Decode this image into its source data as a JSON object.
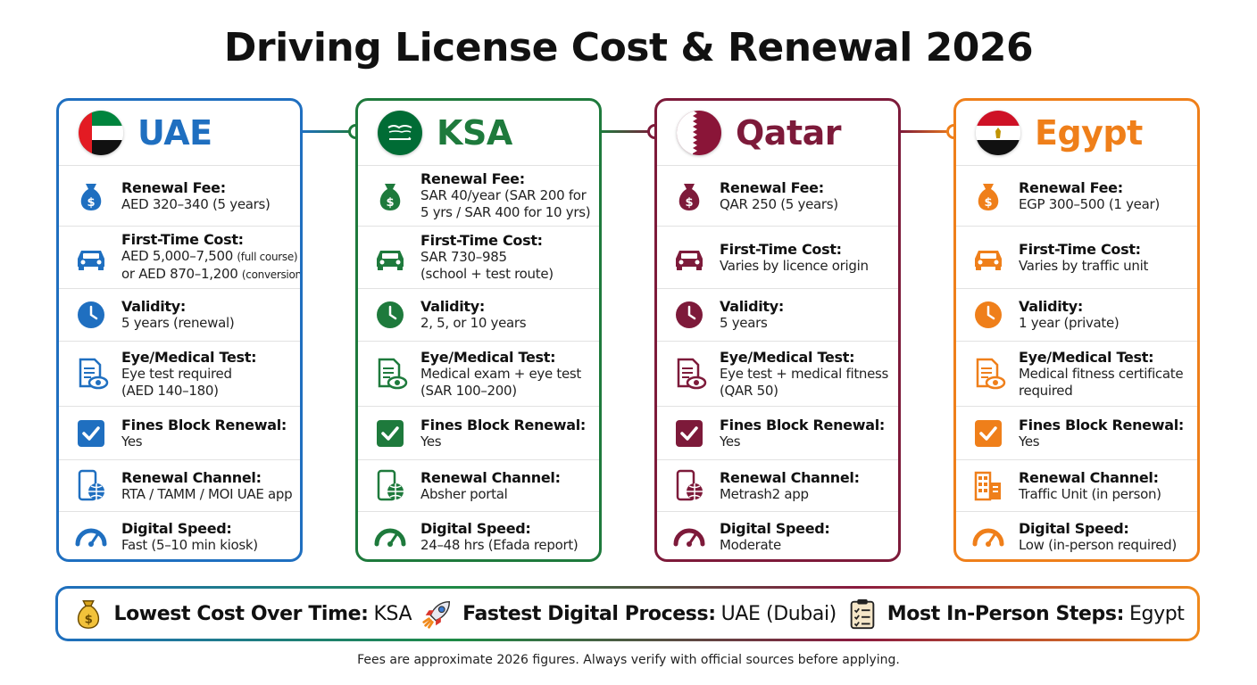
{
  "title": "Driving License Cost & Renewal 2026",
  "colors": {
    "uae": "#1f6fc0",
    "ksa": "#1e7a3c",
    "qatar": "#7d1a3a",
    "egypt": "#ef7f1a"
  },
  "countries": [
    {
      "name": "UAE",
      "flag": "uae-flag",
      "rows": [
        {
          "label": "Renewal Fee:",
          "value": "AED 320–340 (5 years)",
          "icon": "money-bag-icon"
        },
        {
          "label": "First-Time Cost:",
          "value": "AED 5,000–7,500",
          "value_small": "(full course)",
          "value2": "or AED 870–1,200",
          "value2_small": "(conversion)",
          "icon": "car-icon"
        },
        {
          "label": "Validity:",
          "value": "5 years (renewal)",
          "icon": "clock-icon"
        },
        {
          "label": "Eye/Medical Test:",
          "value": "Eye test required",
          "value2": "(AED 140–180)",
          "icon": "eye-document-icon"
        },
        {
          "label": "Fines Block Renewal:",
          "value": "Yes",
          "icon": "checkbox-icon"
        },
        {
          "label": "Renewal Channel:",
          "value": "RTA / TAMM / MOI UAE app",
          "icon": "phone-globe-icon"
        },
        {
          "label": "Digital Speed:",
          "value": "Fast (5–10 min kiosk)",
          "icon": "speedometer-icon"
        }
      ]
    },
    {
      "name": "KSA",
      "flag": "ksa-flag",
      "rows": [
        {
          "label": "Renewal Fee:",
          "value": "SAR 40/year (SAR 200 for",
          "value2": "5 yrs / SAR 400 for 10 yrs)",
          "icon": "money-bag-icon"
        },
        {
          "label": "First-Time Cost:",
          "value": "SAR 730–985",
          "value2": "(school + test route)",
          "icon": "car-icon"
        },
        {
          "label": "Validity:",
          "value": "2, 5, or 10 years",
          "icon": "clock-icon"
        },
        {
          "label": "Eye/Medical Test:",
          "value": "Medical exam + eye test",
          "value2": "(SAR 100–200)",
          "icon": "eye-document-icon"
        },
        {
          "label": "Fines Block Renewal:",
          "value": "Yes",
          "icon": "checkbox-icon"
        },
        {
          "label": "Renewal Channel:",
          "value": "Absher portal",
          "icon": "phone-globe-icon"
        },
        {
          "label": "Digital Speed:",
          "value": "24–48 hrs (Efada report)",
          "icon": "speedometer-icon"
        }
      ]
    },
    {
      "name": "Qatar",
      "flag": "qatar-flag",
      "rows": [
        {
          "label": "Renewal Fee:",
          "value": "QAR 250 (5 years)",
          "icon": "money-bag-icon"
        },
        {
          "label": "First-Time Cost:",
          "value": "Varies by licence origin",
          "icon": "car-icon"
        },
        {
          "label": "Validity:",
          "value": "5 years",
          "icon": "clock-icon"
        },
        {
          "label": "Eye/Medical Test:",
          "value": "Eye test + medical fitness",
          "value2": "(QAR 50)",
          "icon": "eye-document-icon"
        },
        {
          "label": "Fines Block Renewal:",
          "value": "Yes",
          "icon": "checkbox-icon"
        },
        {
          "label": "Renewal Channel:",
          "value": "Metrash2 app",
          "icon": "phone-globe-icon"
        },
        {
          "label": "Digital Speed:",
          "value": "Moderate",
          "icon": "speedometer-icon"
        }
      ]
    },
    {
      "name": "Egypt",
      "flag": "egypt-flag",
      "rows": [
        {
          "label": "Renewal Fee:",
          "value": "EGP 300–500 (1 year)",
          "icon": "money-bag-icon"
        },
        {
          "label": "First-Time Cost:",
          "value": "Varies by traffic unit",
          "icon": "car-icon"
        },
        {
          "label": "Validity:",
          "value": "1 year (private)",
          "icon": "clock-icon"
        },
        {
          "label": "Eye/Medical Test:",
          "value": "Medical fitness certificate",
          "value2": "required",
          "icon": "eye-document-icon"
        },
        {
          "label": "Fines Block Renewal:",
          "value": "Yes",
          "icon": "checkbox-icon"
        },
        {
          "label": "Renewal Channel:",
          "value": "Traffic Unit (in person)",
          "icon": "building-icon"
        },
        {
          "label": "Digital Speed:",
          "value": "Low (in-person required)",
          "icon": "speedometer-icon"
        }
      ]
    }
  ],
  "summary": [
    {
      "label": "Lowest Cost Over Time:",
      "value": "KSA",
      "icon": "money-bag-icon"
    },
    {
      "label": "Fastest Digital Process:",
      "value": "UAE (Dubai)",
      "icon": "rocket-icon"
    },
    {
      "label": "Most In-Person Steps:",
      "value": "Egypt",
      "icon": "clipboard-icon"
    }
  ],
  "footnote": "Fees are approximate 2026 figures. Always verify with official sources before applying."
}
